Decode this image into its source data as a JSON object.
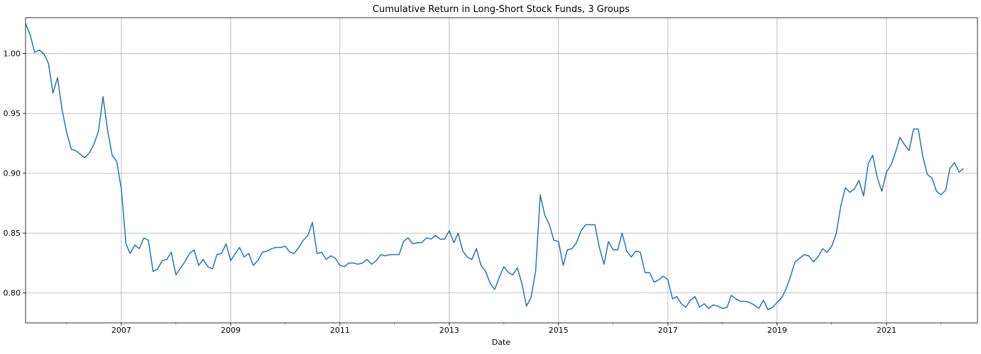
{
  "chart_data": {
    "type": "line",
    "title": "Cumulative Return in Long-Short Stock Funds, 3 Groups",
    "xlabel": "Date",
    "ylabel": "",
    "grid": true,
    "xlim": [
      "2005-04-01",
      "2022-09-01"
    ],
    "ylim": [
      0.775,
      1.03
    ],
    "x_tick_labels": [
      "2007",
      "2009",
      "2011",
      "2013",
      "2015",
      "2017",
      "2019",
      "2021"
    ],
    "x_tick_dates": [
      "2007-01-01",
      "2009-01-01",
      "2011-01-01",
      "2013-01-01",
      "2015-01-01",
      "2017-01-01",
      "2019-01-01",
      "2021-01-01"
    ],
    "y_tick_labels": [
      "0.80",
      "0.85",
      "0.90",
      "0.95",
      "1.00"
    ],
    "y_tick_values": [
      0.8,
      0.85,
      0.9,
      0.95,
      1.0
    ],
    "colors": {
      "line": "#1f77b4",
      "grid": "#b0b0b0"
    },
    "series": [
      {
        "start": "2005-04",
        "values": [
          1.025,
          1.016,
          1.001,
          1.003,
          1.0,
          0.992,
          0.967,
          0.98,
          0.953,
          0.934,
          0.92,
          0.919,
          0.916,
          0.913,
          0.917,
          0.924,
          0.935,
          0.964,
          0.936,
          0.915,
          0.91,
          0.887,
          0.841,
          0.833,
          0.84,
          0.837,
          0.846,
          0.844,
          0.818,
          0.82,
          0.827,
          0.828,
          0.834,
          0.815,
          0.821,
          0.826,
          0.833,
          0.836,
          0.823,
          0.828,
          0.822,
          0.82,
          0.832,
          0.833,
          0.841,
          0.827,
          0.833,
          0.838,
          0.83,
          0.833,
          0.823,
          0.827,
          0.834,
          0.835,
          0.837,
          0.838,
          0.838,
          0.839,
          0.834,
          0.833,
          0.838,
          0.844,
          0.848,
          0.859,
          0.833,
          0.834,
          0.828,
          0.831,
          0.829,
          0.823,
          0.822,
          0.825,
          0.825,
          0.824,
          0.825,
          0.828,
          0.824,
          0.827,
          0.832,
          0.831,
          0.832,
          0.832,
          0.832,
          0.843,
          0.846,
          0.841,
          0.842,
          0.842,
          0.846,
          0.845,
          0.848,
          0.845,
          0.845,
          0.852,
          0.842,
          0.85,
          0.835,
          0.83,
          0.828,
          0.837,
          0.823,
          0.818,
          0.808,
          0.803,
          0.813,
          0.822,
          0.817,
          0.815,
          0.821,
          0.808,
          0.789,
          0.796,
          0.818,
          0.882,
          0.865,
          0.857,
          0.844,
          0.843,
          0.823,
          0.836,
          0.837,
          0.842,
          0.852,
          0.857,
          0.857,
          0.857,
          0.838,
          0.824,
          0.843,
          0.836,
          0.836,
          0.85,
          0.835,
          0.83,
          0.835,
          0.834,
          0.817,
          0.817,
          0.809,
          0.811,
          0.814,
          0.811,
          0.795,
          0.797,
          0.791,
          0.788,
          0.794,
          0.797,
          0.788,
          0.791,
          0.787,
          0.79,
          0.789,
          0.787,
          0.788,
          0.798,
          0.795,
          0.793,
          0.793,
          0.792,
          0.79,
          0.787,
          0.794,
          0.786,
          0.788,
          0.792,
          0.796,
          0.803,
          0.814,
          0.826,
          0.829,
          0.832,
          0.831,
          0.826,
          0.83,
          0.837,
          0.834,
          0.839,
          0.85,
          0.872,
          0.888,
          0.884,
          0.887,
          0.894,
          0.881,
          0.908,
          0.915,
          0.896,
          0.885,
          0.901,
          0.907,
          0.917,
          0.93,
          0.924,
          0.919,
          0.937,
          0.937,
          0.914,
          0.899,
          0.896,
          0.885,
          0.882,
          0.886,
          0.904,
          0.909,
          0.901,
          0.904
        ]
      }
    ]
  }
}
